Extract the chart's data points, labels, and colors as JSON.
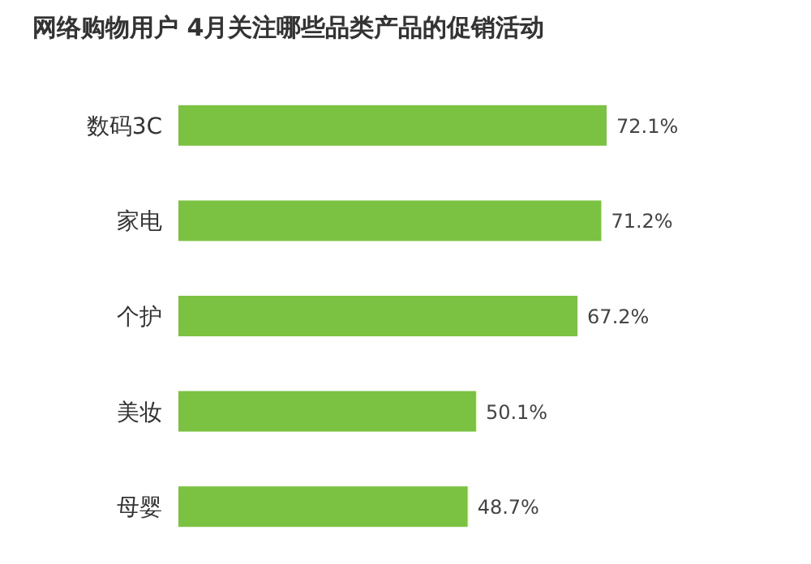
{
  "chart_data": {
    "type": "bar",
    "orientation": "horizontal",
    "title": "网络购物用户 4月关注哪些品类产品的促销活动",
    "categories": [
      "数码3C",
      "家电",
      "个护",
      "美妆",
      "母婴"
    ],
    "values": [
      72.1,
      71.2,
      67.2,
      50.1,
      48.7
    ],
    "value_labels": [
      "72.1%",
      "71.2%",
      "67.2%",
      "50.1%",
      "48.7%"
    ],
    "color": "#7cc242"
  }
}
